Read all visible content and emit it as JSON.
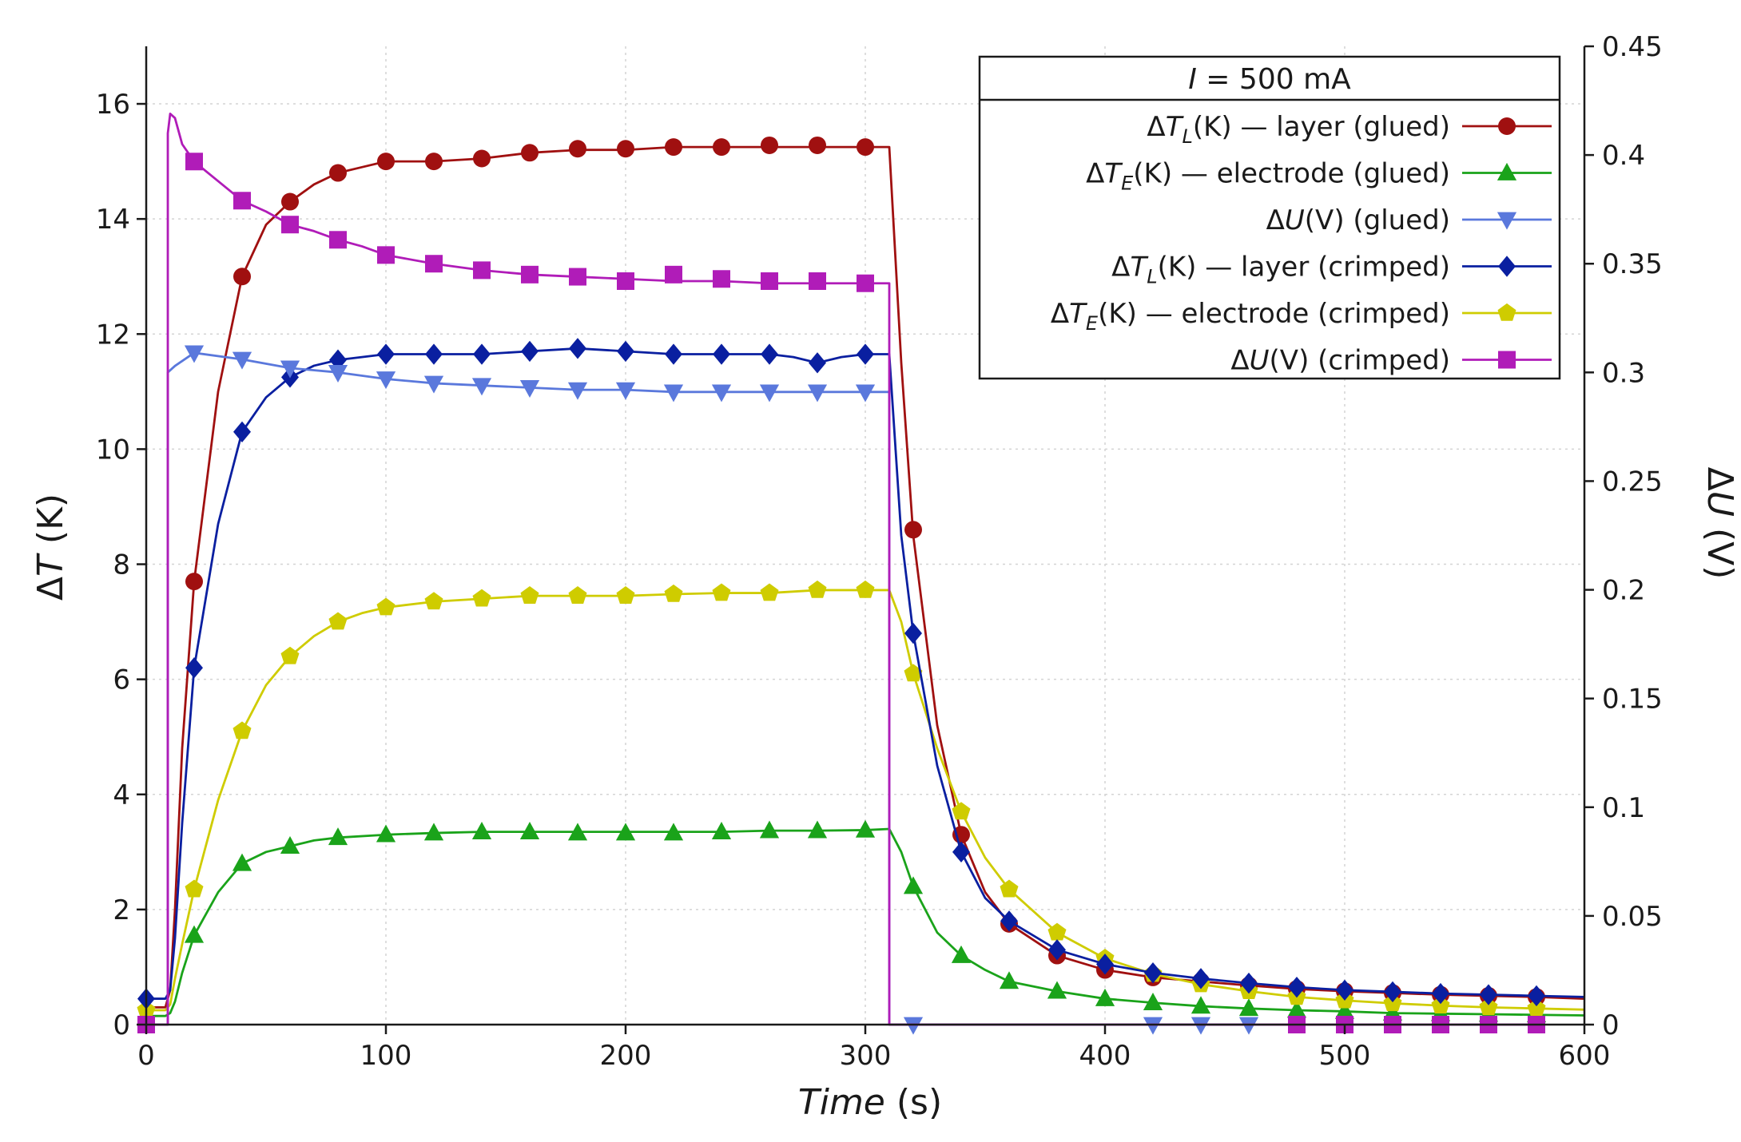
{
  "chart_data": {
    "type": "line",
    "title": "",
    "x": {
      "label_italic": "Time",
      "label_rest": " (s)",
      "lim": [
        0,
        600
      ],
      "ticks": [
        0,
        100,
        200,
        300,
        400,
        500,
        600
      ]
    },
    "y_left": {
      "label_prefix": "Δ",
      "label_italic": "T",
      "label_rest": " (K)",
      "lim": [
        0,
        17
      ],
      "ticks": [
        0,
        2,
        4,
        6,
        8,
        10,
        12,
        14,
        16
      ]
    },
    "y_right": {
      "label_prefix": "Δ",
      "label_italic": "U",
      "label_rest": " (V)",
      "lim": [
        0,
        0.45
      ],
      "ticks": [
        0,
        0.05,
        0.1,
        0.15,
        0.2,
        0.25,
        0.3,
        0.35,
        0.4,
        0.45
      ],
      "tick_labels": [
        "0",
        "0.05",
        "0.1",
        "0.15",
        "0.2",
        "0.25",
        "0.3",
        "0.35",
        "0.4",
        "0.45"
      ]
    },
    "grid": true,
    "legend": {
      "placement": "top-right",
      "title_italic": "I",
      "title_rest": " = 500 mA"
    },
    "series": [
      {
        "name": "ΔTL(K) — layer (glued)",
        "label_parts": [
          "Δ",
          "T",
          "L",
          "(K) — layer (glued)"
        ],
        "axis": "left",
        "color": "#a01010",
        "marker": "circle",
        "line_x": [
          0,
          8,
          10,
          12,
          15,
          20,
          30,
          40,
          50,
          60,
          70,
          80,
          90,
          100,
          120,
          140,
          160,
          180,
          200,
          220,
          240,
          260,
          280,
          300,
          310,
          315,
          320,
          330,
          340,
          350,
          360,
          380,
          400,
          420,
          440,
          460,
          480,
          500,
          520,
          540,
          560,
          580,
          600
        ],
        "line_y": [
          0.3,
          0.3,
          0.6,
          2.0,
          4.8,
          7.7,
          11.0,
          13.0,
          13.9,
          14.3,
          14.6,
          14.8,
          14.9,
          15.0,
          15.0,
          15.05,
          15.15,
          15.2,
          15.2,
          15.25,
          15.25,
          15.25,
          15.25,
          15.25,
          15.25,
          11.5,
          8.5,
          5.2,
          3.3,
          2.3,
          1.75,
          1.2,
          0.95,
          0.82,
          0.75,
          0.68,
          0.62,
          0.58,
          0.55,
          0.52,
          0.5,
          0.48,
          0.45
        ],
        "marker_x": [
          20,
          40,
          60,
          80,
          100,
          120,
          140,
          160,
          180,
          200,
          220,
          240,
          260,
          280,
          300,
          320,
          340,
          360,
          380,
          400,
          420,
          440,
          460,
          480,
          500,
          520,
          540,
          560,
          580
        ],
        "marker_y": [
          7.7,
          13.0,
          14.3,
          14.8,
          15.0,
          15.0,
          15.05,
          15.15,
          15.22,
          15.22,
          15.25,
          15.25,
          15.28,
          15.28,
          15.25,
          8.6,
          3.3,
          1.75,
          1.2,
          0.95,
          0.82,
          0.75,
          0.68,
          0.62,
          0.58,
          0.55,
          0.52,
          0.5,
          0.48
        ]
      },
      {
        "name": "ΔTE(K) — electrode (glued)",
        "label_parts": [
          "Δ",
          "T",
          "E",
          "(K) — electrode (glued)"
        ],
        "axis": "left",
        "color": "#1aa31a",
        "marker": "triangle-up",
        "line_x": [
          0,
          8,
          10,
          12,
          15,
          20,
          30,
          40,
          50,
          60,
          70,
          80,
          100,
          120,
          140,
          160,
          180,
          200,
          220,
          240,
          260,
          280,
          300,
          310,
          315,
          320,
          330,
          340,
          350,
          360,
          380,
          400,
          420,
          440,
          460,
          480,
          500,
          520,
          540,
          560,
          580,
          600
        ],
        "line_y": [
          0.15,
          0.15,
          0.2,
          0.4,
          0.9,
          1.55,
          2.3,
          2.8,
          3.0,
          3.1,
          3.2,
          3.25,
          3.3,
          3.33,
          3.35,
          3.35,
          3.35,
          3.35,
          3.35,
          3.35,
          3.37,
          3.37,
          3.38,
          3.4,
          3.0,
          2.4,
          1.6,
          1.2,
          0.95,
          0.75,
          0.58,
          0.45,
          0.38,
          0.32,
          0.28,
          0.25,
          0.23,
          0.2,
          0.19,
          0.18,
          0.17,
          0.16
        ],
        "marker_x": [
          20,
          40,
          60,
          80,
          100,
          120,
          140,
          160,
          180,
          200,
          220,
          240,
          260,
          280,
          300,
          320,
          340,
          360,
          380,
          400,
          420,
          440,
          460,
          480,
          500,
          520,
          540,
          560,
          580
        ],
        "marker_y": [
          1.55,
          2.8,
          3.1,
          3.25,
          3.3,
          3.33,
          3.35,
          3.35,
          3.33,
          3.33,
          3.33,
          3.35,
          3.37,
          3.37,
          3.38,
          2.4,
          1.2,
          0.75,
          0.58,
          0.45,
          0.38,
          0.32,
          0.28,
          0.25,
          0.23,
          0.2,
          0.19,
          0.18,
          0.17
        ]
      },
      {
        "name": "ΔU(V) (glued)",
        "label_parts": [
          "Δ",
          "U",
          "",
          "(V) (glued)"
        ],
        "axis": "right",
        "color": "#5a78dc",
        "marker": "triangle-down",
        "line_x": [
          0,
          9,
          9.01,
          12,
          20,
          40,
          60,
          80,
          100,
          120,
          140,
          160,
          180,
          200,
          220,
          240,
          260,
          280,
          300,
          310,
          310.01,
          320,
          420,
          440,
          460
        ],
        "line_y": [
          0,
          0,
          0.3,
          0.303,
          0.309,
          0.306,
          0.302,
          0.3,
          0.297,
          0.295,
          0.294,
          0.293,
          0.292,
          0.292,
          0.291,
          0.291,
          0.291,
          0.291,
          0.291,
          0.291,
          0,
          0,
          0,
          0,
          0
        ],
        "marker_x": [
          20,
          40,
          60,
          80,
          100,
          120,
          140,
          160,
          180,
          200,
          220,
          240,
          260,
          280,
          300,
          320,
          420,
          440,
          460
        ],
        "marker_y": [
          0.309,
          0.306,
          0.302,
          0.3,
          0.297,
          0.295,
          0.294,
          0.293,
          0.292,
          0.292,
          0.291,
          0.291,
          0.291,
          0.291,
          0.291,
          0,
          0,
          0,
          0
        ]
      },
      {
        "name": "ΔTL(K) — layer (crimped)",
        "label_parts": [
          "Δ",
          "T",
          "L",
          "(K) — layer (crimped)"
        ],
        "axis": "left",
        "color": "#0a1fa0",
        "marker": "diamond",
        "line_x": [
          0,
          8,
          10,
          12,
          15,
          20,
          30,
          40,
          50,
          60,
          70,
          80,
          90,
          100,
          120,
          140,
          160,
          180,
          200,
          220,
          240,
          260,
          270,
          280,
          290,
          300,
          310,
          315,
          320,
          330,
          340,
          350,
          360,
          380,
          400,
          420,
          440,
          460,
          480,
          500,
          520,
          540,
          560,
          580,
          600
        ],
        "line_y": [
          0.45,
          0.45,
          0.6,
          1.5,
          3.5,
          6.2,
          8.7,
          10.3,
          10.9,
          11.25,
          11.45,
          11.55,
          11.6,
          11.65,
          11.65,
          11.65,
          11.7,
          11.75,
          11.7,
          11.65,
          11.65,
          11.65,
          11.6,
          11.5,
          11.6,
          11.65,
          11.65,
          8.5,
          6.8,
          4.5,
          3.0,
          2.2,
          1.8,
          1.3,
          1.05,
          0.9,
          0.8,
          0.72,
          0.65,
          0.6,
          0.57,
          0.54,
          0.52,
          0.5,
          0.48
        ],
        "marker_x": [
          0,
          20,
          40,
          60,
          80,
          100,
          120,
          140,
          160,
          180,
          200,
          220,
          240,
          260,
          280,
          300,
          320,
          340,
          360,
          380,
          400,
          420,
          440,
          460,
          480,
          500,
          520,
          540,
          560,
          580
        ],
        "marker_y": [
          0.45,
          6.2,
          10.3,
          11.25,
          11.55,
          11.65,
          11.65,
          11.65,
          11.7,
          11.75,
          11.7,
          11.65,
          11.65,
          11.65,
          11.5,
          11.65,
          6.8,
          3.0,
          1.8,
          1.3,
          1.05,
          0.9,
          0.8,
          0.72,
          0.65,
          0.6,
          0.57,
          0.54,
          0.52,
          0.5
        ]
      },
      {
        "name": "ΔTE(K) — electrode (crimped)",
        "label_parts": [
          "Δ",
          "T",
          "E",
          "(K) — electrode (crimped)"
        ],
        "axis": "left",
        "color": "#cfcc00",
        "marker": "pentagon",
        "line_x": [
          0,
          8,
          10,
          12,
          15,
          20,
          30,
          40,
          50,
          60,
          70,
          80,
          90,
          100,
          120,
          140,
          160,
          180,
          200,
          220,
          240,
          260,
          280,
          300,
          310,
          315,
          320,
          330,
          340,
          350,
          360,
          380,
          400,
          420,
          440,
          460,
          480,
          500,
          520,
          540,
          560,
          580,
          600
        ],
        "line_y": [
          0.25,
          0.25,
          0.35,
          0.8,
          1.4,
          2.35,
          3.9,
          5.1,
          5.9,
          6.4,
          6.75,
          7.0,
          7.15,
          7.25,
          7.35,
          7.4,
          7.45,
          7.45,
          7.45,
          7.48,
          7.5,
          7.5,
          7.55,
          7.55,
          7.55,
          7.0,
          6.1,
          4.8,
          3.7,
          2.9,
          2.35,
          1.6,
          1.15,
          0.88,
          0.7,
          0.58,
          0.48,
          0.42,
          0.37,
          0.33,
          0.3,
          0.28,
          0.26
        ],
        "marker_x": [
          0,
          20,
          40,
          60,
          80,
          100,
          120,
          140,
          160,
          180,
          200,
          220,
          240,
          260,
          280,
          300,
          320,
          340,
          360,
          380,
          400,
          420,
          440,
          460,
          480,
          500,
          520,
          540,
          560,
          580
        ],
        "marker_y": [
          0.25,
          2.35,
          5.1,
          6.4,
          7.0,
          7.25,
          7.35,
          7.4,
          7.45,
          7.45,
          7.45,
          7.48,
          7.5,
          7.5,
          7.55,
          7.55,
          6.1,
          3.7,
          2.35,
          1.6,
          1.15,
          0.88,
          0.7,
          0.58,
          0.48,
          0.42,
          0.37,
          0.33,
          0.3,
          0.28
        ]
      },
      {
        "name": "ΔU(V) (crimped)",
        "label_parts": [
          "Δ",
          "U",
          "",
          "(V) (crimped)"
        ],
        "axis": "right",
        "color": "#b01cb8",
        "marker": "square",
        "line_x": [
          0,
          9,
          9.01,
          10,
          12,
          15,
          20,
          30,
          40,
          50,
          60,
          70,
          80,
          90,
          100,
          120,
          140,
          160,
          180,
          200,
          220,
          240,
          260,
          280,
          300,
          310,
          310.01,
          320,
          480,
          500,
          520,
          540,
          560,
          580
        ],
        "line_y": [
          0,
          0,
          0.41,
          0.419,
          0.417,
          0.405,
          0.397,
          0.388,
          0.379,
          0.374,
          0.368,
          0.365,
          0.361,
          0.358,
          0.354,
          0.35,
          0.347,
          0.345,
          0.344,
          0.343,
          0.342,
          0.342,
          0.341,
          0.341,
          0.341,
          0.341,
          0,
          0,
          0,
          0,
          0,
          0,
          0,
          0
        ],
        "marker_x": [
          0,
          20,
          40,
          60,
          80,
          100,
          120,
          140,
          160,
          180,
          200,
          220,
          240,
          260,
          280,
          300,
          480,
          500,
          520,
          540,
          560,
          580
        ],
        "marker_y": [
          0,
          0.397,
          0.379,
          0.368,
          0.361,
          0.354,
          0.35,
          0.347,
          0.345,
          0.344,
          0.342,
          0.345,
          0.343,
          0.342,
          0.342,
          0.341,
          0,
          0,
          0,
          0,
          0,
          0
        ]
      }
    ]
  }
}
